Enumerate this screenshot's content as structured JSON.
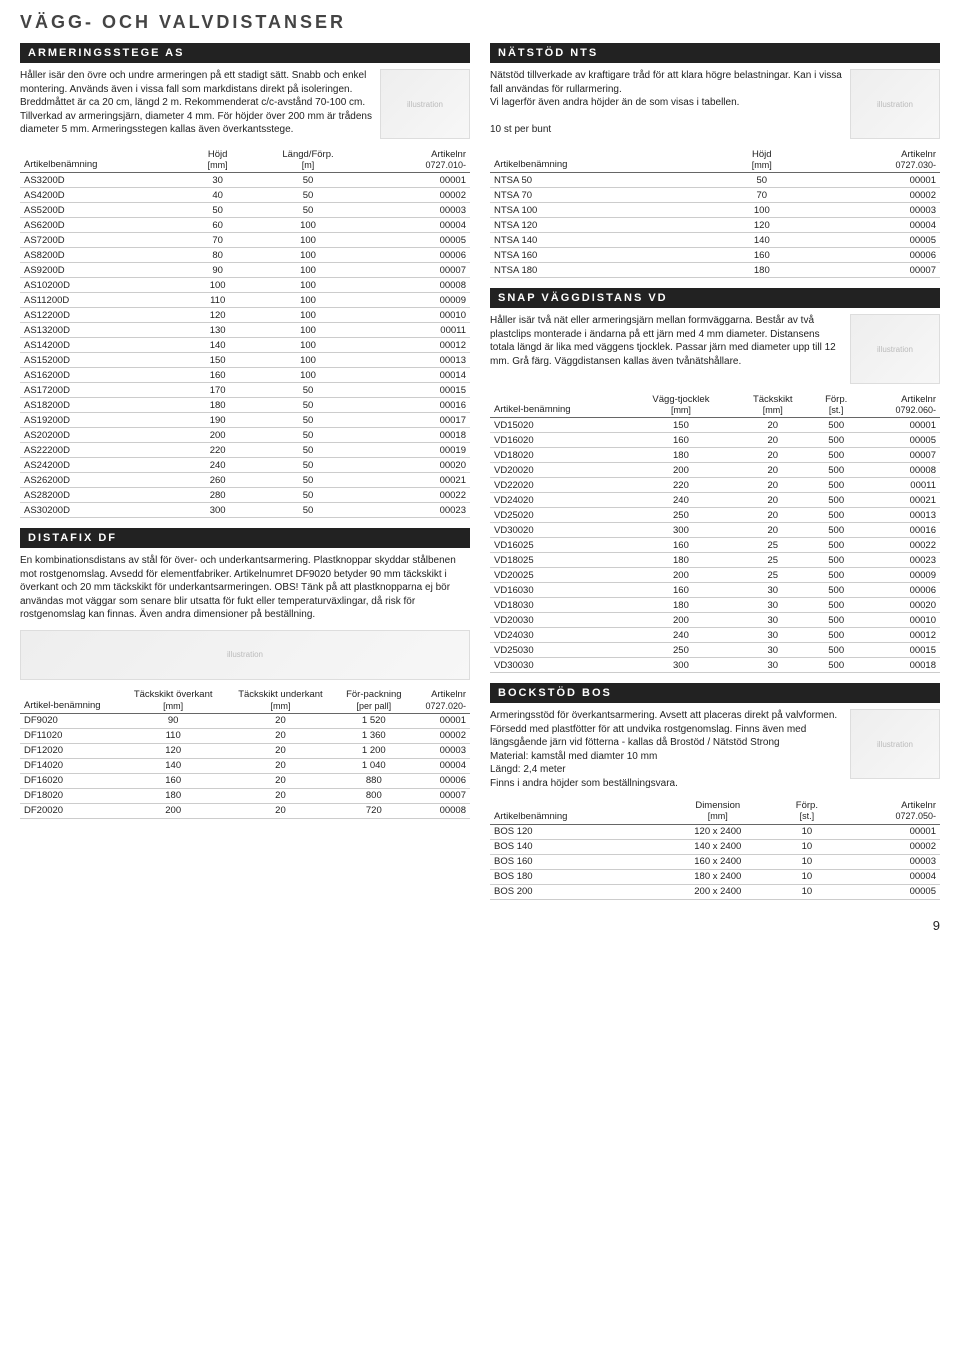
{
  "pageTitle": "VÄGG- OCH VALVDISTANSER",
  "pageNumber": "9",
  "left": {
    "as": {
      "head": "ARMERINGSSTEGE AS",
      "desc": "Håller isär den övre och undre armeringen på ett stadigt sätt. Snabb och enkel montering. Används även i vissa fall som markdistans direkt på isoleringen. Breddmåttet är ca 20 cm, längd 2 m. Rekommenderat c/c-avstånd 70-100 cm. Tillverkad av armeringsjärn, diameter 4 mm. För höjder över 200 mm är trådens diameter 5 mm. Armeringsstegen kallas även överkantsstege.",
      "headers": {
        "c1": "Artikelbenämning",
        "c2": "Höjd",
        "u2": "[mm]",
        "c3": "Längd/Förp.",
        "u3": "[m]",
        "c4": "Artikelnr",
        "u4": "0727.010-"
      },
      "rows": [
        [
          "AS3200D",
          "30",
          "50",
          "00001"
        ],
        [
          "AS4200D",
          "40",
          "50",
          "00002"
        ],
        [
          "AS5200D",
          "50",
          "50",
          "00003"
        ],
        [
          "AS6200D",
          "60",
          "100",
          "00004"
        ],
        [
          "AS7200D",
          "70",
          "100",
          "00005"
        ],
        [
          "AS8200D",
          "80",
          "100",
          "00006"
        ],
        [
          "AS9200D",
          "90",
          "100",
          "00007"
        ],
        [
          "AS10200D",
          "100",
          "100",
          "00008"
        ],
        [
          "AS11200D",
          "110",
          "100",
          "00009"
        ],
        [
          "AS12200D",
          "120",
          "100",
          "00010"
        ],
        [
          "AS13200D",
          "130",
          "100",
          "00011"
        ],
        [
          "AS14200D",
          "140",
          "100",
          "00012"
        ],
        [
          "AS15200D",
          "150",
          "100",
          "00013"
        ],
        [
          "AS16200D",
          "160",
          "100",
          "00014"
        ],
        [
          "AS17200D",
          "170",
          "50",
          "00015"
        ],
        [
          "AS18200D",
          "180",
          "50",
          "00016"
        ],
        [
          "AS19200D",
          "190",
          "50",
          "00017"
        ],
        [
          "AS20200D",
          "200",
          "50",
          "00018"
        ],
        [
          "AS22200D",
          "220",
          "50",
          "00019"
        ],
        [
          "AS24200D",
          "240",
          "50",
          "00020"
        ],
        [
          "AS26200D",
          "260",
          "50",
          "00021"
        ],
        [
          "AS28200D",
          "280",
          "50",
          "00022"
        ],
        [
          "AS30200D",
          "300",
          "50",
          "00023"
        ]
      ]
    },
    "df": {
      "head": "DISTAFIX DF",
      "desc": "En kombinationsdistans av stål för över- och underkantsarmering. Plastknoppar skyddar stålbenen mot rostgenomslag. Avsedd för elementfabriker. Artikelnumret DF9020 betyder 90 mm täckskikt i överkant och 20 mm täckskikt för underkantsarmeringen. OBS! Tänk på att plastknopparna ej bör användas mot väggar som senare blir utsatta för fukt eller temperaturväxlingar, då risk för rostgenomslag kan finnas. Även andra dimensioner på beställning.",
      "headers": {
        "c1": "Artikel-benämning",
        "c2": "Täckskikt överkant",
        "u2": "[mm]",
        "c3": "Täckskikt underkant",
        "u3": "[mm]",
        "c4": "För-packning",
        "u4": "[per pall]",
        "c5": "Artikelnr",
        "u5": "0727.020-"
      },
      "rows": [
        [
          "DF9020",
          "90",
          "20",
          "1 520",
          "00001"
        ],
        [
          "DF11020",
          "110",
          "20",
          "1 360",
          "00002"
        ],
        [
          "DF12020",
          "120",
          "20",
          "1 200",
          "00003"
        ],
        [
          "DF14020",
          "140",
          "20",
          "1 040",
          "00004"
        ],
        [
          "DF16020",
          "160",
          "20",
          "880",
          "00006"
        ],
        [
          "DF18020",
          "180",
          "20",
          "800",
          "00007"
        ],
        [
          "DF20020",
          "200",
          "20",
          "720",
          "00008"
        ]
      ]
    }
  },
  "right": {
    "nts": {
      "head": "NÄTSTÖD NTS",
      "desc": "Nätstöd tillverkade av kraftigare tråd för att klara högre belastningar. Kan i vissa fall användas för rullarmering.\nVi lagerför även andra höjder än de som visas i tabellen.\n\n10 st per bunt",
      "headers": {
        "c1": "Artikelbenämning",
        "c2": "Höjd",
        "u2": "[mm]",
        "c3": "Artikelnr",
        "u3": "0727.030-"
      },
      "rows": [
        [
          "NTSA 50",
          "50",
          "00001"
        ],
        [
          "NTSA 70",
          "70",
          "00002"
        ],
        [
          "NTSA 100",
          "100",
          "00003"
        ],
        [
          "NTSA 120",
          "120",
          "00004"
        ],
        [
          "NTSA 140",
          "140",
          "00005"
        ],
        [
          "NTSA 160",
          "160",
          "00006"
        ],
        [
          "NTSA 180",
          "180",
          "00007"
        ]
      ]
    },
    "vd": {
      "head": "SNAP VÄGGDISTANS VD",
      "desc": "Håller isär två nät eller armeringsjärn mellan formväggarna. Består av två plastclips monterade i ändarna på ett järn med 4 mm diameter. Distansens totala längd är lika med väggens tjocklek. Passar järn med diameter upp till 12 mm. Grå färg. Väggdistansen kallas även tvånätshållare.",
      "headers": {
        "c1": "Artikel-benämning",
        "c2": "Vägg-tjocklek",
        "u2": "[mm]",
        "c3": "Täckskikt",
        "u3": "[mm]",
        "c4": "Förp.",
        "u4": "[st.]",
        "c5": "Artikelnr",
        "u5": "0792.060-"
      },
      "rows": [
        [
          "VD15020",
          "150",
          "20",
          "500",
          "00001"
        ],
        [
          "VD16020",
          "160",
          "20",
          "500",
          "00005"
        ],
        [
          "VD18020",
          "180",
          "20",
          "500",
          "00007"
        ],
        [
          "VD20020",
          "200",
          "20",
          "500",
          "00008"
        ],
        [
          "VD22020",
          "220",
          "20",
          "500",
          "00011"
        ],
        [
          "VD24020",
          "240",
          "20",
          "500",
          "00021"
        ],
        [
          "VD25020",
          "250",
          "20",
          "500",
          "00013"
        ],
        [
          "VD30020",
          "300",
          "20",
          "500",
          "00016"
        ],
        [
          "VD16025",
          "160",
          "25",
          "500",
          "00022"
        ],
        [
          "VD18025",
          "180",
          "25",
          "500",
          "00023"
        ],
        [
          "VD20025",
          "200",
          "25",
          "500",
          "00009"
        ],
        [
          "VD16030",
          "160",
          "30",
          "500",
          "00006"
        ],
        [
          "VD18030",
          "180",
          "30",
          "500",
          "00020"
        ],
        [
          "VD20030",
          "200",
          "30",
          "500",
          "00010"
        ],
        [
          "VD24030",
          "240",
          "30",
          "500",
          "00012"
        ],
        [
          "VD25030",
          "250",
          "30",
          "500",
          "00015"
        ],
        [
          "VD30030",
          "300",
          "30",
          "500",
          "00018"
        ]
      ]
    },
    "bos": {
      "head": "BOCKSTÖD BOS",
      "desc": "Armeringsstöd för överkantsarmering. Avsett att placeras direkt på valvformen. Försedd med plastfötter för att undvika rostgenomslag. Finns även med längsgående järn vid fötterna - kallas då Brostöd / Nätstöd Strong\nMaterial: kamstål med diamter 10 mm\nLängd: 2,4 meter\nFinns i andra höjder som beställningsvara.",
      "headers": {
        "c1": "Artikelbenämning",
        "c2": "Dimension",
        "u2": "[mm]",
        "c3": "Förp.",
        "u3": "[st.]",
        "c4": "Artikelnr",
        "u4": "0727.050-"
      },
      "rows": [
        [
          "BOS 120",
          "120 x 2400",
          "10",
          "00001"
        ],
        [
          "BOS 140",
          "140 x 2400",
          "10",
          "00002"
        ],
        [
          "BOS 160",
          "160 x 2400",
          "10",
          "00003"
        ],
        [
          "BOS 180",
          "180 x 2400",
          "10",
          "00004"
        ],
        [
          "BOS 200",
          "200 x 2400",
          "10",
          "00005"
        ]
      ]
    }
  }
}
